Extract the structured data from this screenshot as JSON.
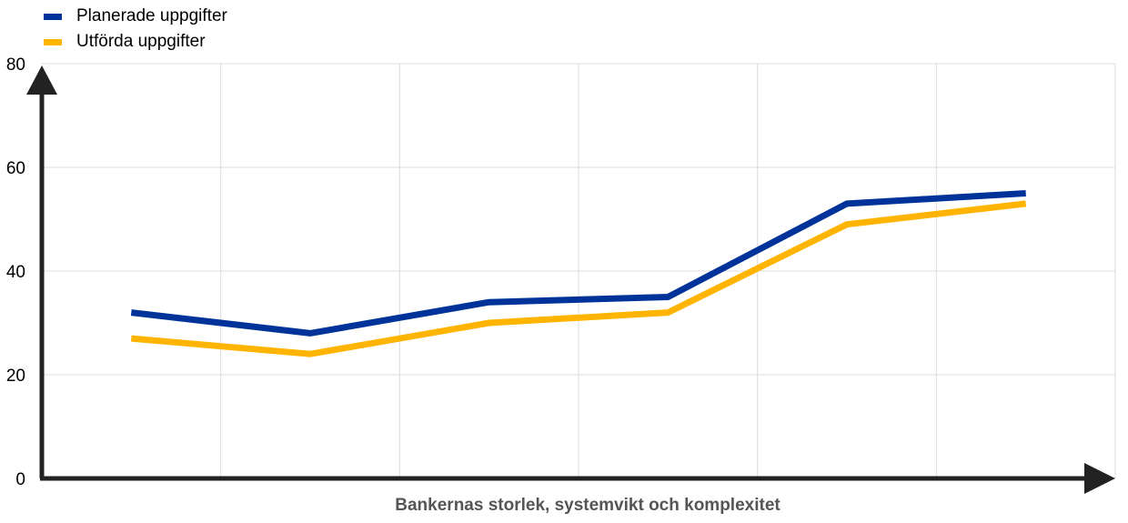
{
  "chart_data": {
    "type": "line",
    "title": "",
    "xlabel": "Bankernas storlek, systemvikt och komplexitet",
    "ylabel": "",
    "ylim": [
      0,
      80
    ],
    "yticks": [
      0,
      20,
      40,
      60,
      80
    ],
    "x": [
      1,
      2,
      3,
      4,
      5,
      6
    ],
    "grid": true,
    "legend_position": "top-left",
    "series": [
      {
        "name": "Planerade uppgifter",
        "color": "#003399",
        "values": [
          32,
          28,
          34,
          35,
          53,
          55
        ]
      },
      {
        "name": "Utförda uppgifter",
        "color": "#FFB400",
        "values": [
          27,
          24,
          30,
          32,
          49,
          53
        ]
      }
    ]
  }
}
